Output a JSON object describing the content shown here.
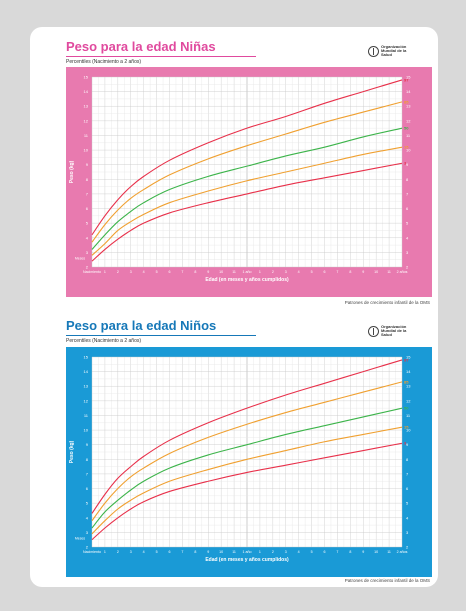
{
  "charts": [
    {
      "id": "girls",
      "title": "Peso para la edad Niñas",
      "subtitle": "Percentiles (Nacimiento a 2 años)",
      "org_name_1": "Organización",
      "org_name_2": "Mundial de la Salud",
      "source": "Patrones de crecimiento infantil de la OMS",
      "frame_color": "#e87aaf"
    },
    {
      "id": "boys",
      "title": "Peso para la edad Niños",
      "subtitle": "Percentiles (Nacimiento a 2 años)",
      "org_name_1": "Organización",
      "org_name_2": "Mundial de la Salud",
      "source": "Patrones de crecimiento infantil de la OMS",
      "frame_color": "#1a9ad6"
    }
  ],
  "chart_data": [
    {
      "type": "line",
      "title": "Peso para la edad Niñas",
      "xlabel": "Edad (en meses y años cumplidos)",
      "ylabel": "Peso (kg)",
      "x_ticks": [
        "Nacimiento",
        "1",
        "2",
        "3",
        "4",
        "5",
        "6",
        "7",
        "8",
        "9",
        "10",
        "11",
        "1 año",
        "1",
        "2",
        "3",
        "4",
        "5",
        "6",
        "7",
        "8",
        "9",
        "10",
        "11",
        "2 años"
      ],
      "y_ticks": [
        "2",
        "3",
        "4",
        "5",
        "6",
        "7",
        "8",
        "9",
        "10",
        "11",
        "12",
        "13",
        "14",
        "15"
      ],
      "y_tick_left_label": "Meses",
      "ylim": [
        2,
        15
      ],
      "xlim": [
        0,
        24
      ],
      "x": [
        0,
        1,
        2,
        3,
        4,
        6,
        9,
        12,
        15,
        18,
        21,
        24
      ],
      "series": [
        {
          "name": "97",
          "color": "#e8304a",
          "values": [
            4.2,
            5.5,
            6.6,
            7.5,
            8.2,
            9.3,
            10.5,
            11.5,
            12.3,
            13.2,
            14.0,
            14.8
          ]
        },
        {
          "name": "85",
          "color": "#f0a030",
          "values": [
            3.7,
            4.9,
            5.9,
            6.7,
            7.3,
            8.3,
            9.4,
            10.3,
            11.1,
            11.9,
            12.6,
            13.3
          ]
        },
        {
          "name": "50",
          "color": "#3cb44a",
          "values": [
            3.2,
            4.2,
            5.1,
            5.8,
            6.4,
            7.3,
            8.2,
            8.9,
            9.6,
            10.2,
            10.9,
            11.5
          ]
        },
        {
          "name": "15",
          "color": "#f0a030",
          "values": [
            2.8,
            3.6,
            4.5,
            5.1,
            5.6,
            6.4,
            7.2,
            7.9,
            8.5,
            9.1,
            9.7,
            10.2
          ]
        },
        {
          "name": "3",
          "color": "#e8304a",
          "values": [
            2.4,
            3.2,
            3.9,
            4.5,
            5.0,
            5.7,
            6.4,
            7.0,
            7.6,
            8.1,
            8.6,
            9.1
          ]
        }
      ],
      "grid": true
    },
    {
      "type": "line",
      "title": "Peso para la edad Niños",
      "xlabel": "Edad (en meses y años cumplidos)",
      "ylabel": "Peso (kg)",
      "x_ticks": [
        "Nacimiento",
        "1",
        "2",
        "3",
        "4",
        "5",
        "6",
        "7",
        "8",
        "9",
        "10",
        "11",
        "1 año",
        "1",
        "2",
        "3",
        "4",
        "5",
        "6",
        "7",
        "8",
        "9",
        "10",
        "11",
        "2 años"
      ],
      "y_ticks": [
        "2",
        "3",
        "4",
        "5",
        "6",
        "7",
        "8",
        "9",
        "10",
        "11",
        "12",
        "13",
        "14",
        "15"
      ],
      "y_tick_left_label": "Meses",
      "ylim": [
        2,
        15
      ],
      "xlim": [
        0,
        24
      ],
      "x": [
        0,
        1,
        2,
        3,
        4,
        6,
        9,
        12,
        15,
        18,
        21,
        24
      ],
      "series": [
        {
          "name": "97",
          "color": "#e8304a",
          "values": [
            4.3,
            5.6,
            6.7,
            7.5,
            8.2,
            9.3,
            10.5,
            11.5,
            12.4,
            13.2,
            14.0,
            14.8
          ]
        },
        {
          "name": "85",
          "color": "#f0a030",
          "values": [
            3.8,
            5.0,
            6.0,
            6.8,
            7.4,
            8.4,
            9.5,
            10.4,
            11.2,
            11.9,
            12.6,
            13.3
          ]
        },
        {
          "name": "50",
          "color": "#3cb44a",
          "values": [
            3.3,
            4.4,
            5.2,
            5.9,
            6.5,
            7.4,
            8.3,
            9.0,
            9.7,
            10.3,
            10.9,
            11.5
          ]
        },
        {
          "name": "15",
          "color": "#f0a030",
          "values": [
            2.9,
            3.8,
            4.6,
            5.2,
            5.7,
            6.5,
            7.3,
            8.0,
            8.6,
            9.2,
            9.7,
            10.2
          ]
        },
        {
          "name": "3",
          "color": "#e8304a",
          "values": [
            2.5,
            3.3,
            4.0,
            4.6,
            5.1,
            5.8,
            6.5,
            7.1,
            7.6,
            8.1,
            8.6,
            9.1
          ]
        }
      ],
      "grid": true
    }
  ]
}
